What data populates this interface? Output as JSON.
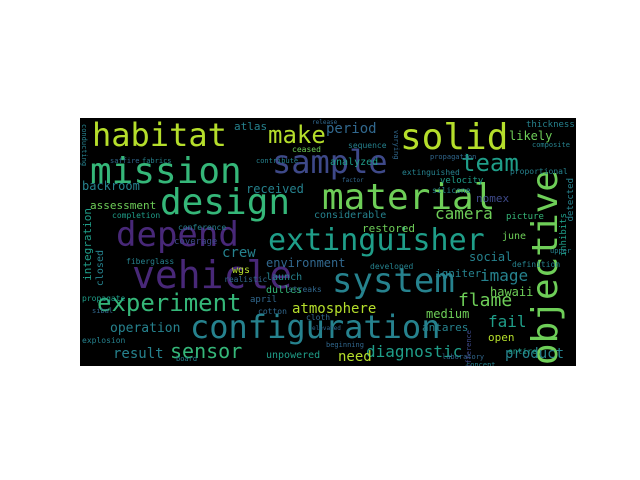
{
  "palette": {
    "background": "#000000",
    "yellow_green": "#b5de2b",
    "green": "#6ece58",
    "teal_green": "#35b779",
    "teal": "#1f9e89",
    "blue_teal": "#26828e",
    "blue": "#31688e",
    "indigo": "#3e4989",
    "purple": "#482878"
  },
  "words": [
    {
      "text": "habitat",
      "color": "#b5de2b"
    },
    {
      "text": "solid",
      "color": "#b5de2b"
    },
    {
      "text": "make",
      "color": "#b5de2b"
    },
    {
      "text": "mission",
      "color": "#35b779"
    },
    {
      "text": "sample",
      "color": "#3e4989"
    },
    {
      "text": "team",
      "color": "#1f9e89"
    },
    {
      "text": "design",
      "color": "#35b779"
    },
    {
      "text": "material",
      "color": "#6ece58"
    },
    {
      "text": "objective",
      "color": "#6ece58"
    },
    {
      "text": "depend",
      "color": "#482878"
    },
    {
      "text": "extinguisher",
      "color": "#1f9e89"
    },
    {
      "text": "vehicle",
      "color": "#482878"
    },
    {
      "text": "system",
      "color": "#26828e"
    },
    {
      "text": "experiment",
      "color": "#35b779"
    },
    {
      "text": "configuration",
      "color": "#26828e"
    },
    {
      "text": "flame",
      "color": "#6ece58"
    },
    {
      "text": "atmosphere",
      "color": "#b5de2b"
    },
    {
      "text": "sensor",
      "color": "#35b779"
    },
    {
      "text": "diagnostic",
      "color": "#1f9e89"
    },
    {
      "text": "product",
      "color": "#26828e"
    },
    {
      "text": "result",
      "color": "#26828e"
    },
    {
      "text": "operation",
      "color": "#26828e"
    },
    {
      "text": "camera",
      "color": "#6ece58"
    },
    {
      "text": "period",
      "color": "#31688e"
    },
    {
      "text": "image",
      "color": "#26828e"
    },
    {
      "text": "fail",
      "color": "#1f9e89"
    },
    {
      "text": "need",
      "color": "#b5de2b"
    },
    {
      "text": "unpowered",
      "color": "#1f9e89"
    },
    {
      "text": "environment",
      "color": "#31688e"
    },
    {
      "text": "crew",
      "color": "#26828e"
    },
    {
      "text": "atlas",
      "color": "#26828e"
    },
    {
      "text": "likely",
      "color": "#6ece58"
    },
    {
      "text": "social",
      "color": "#26828e"
    },
    {
      "text": "hawaii",
      "color": "#6ece58"
    },
    {
      "text": "medium",
      "color": "#6ece58"
    },
    {
      "text": "open",
      "color": "#b5de2b"
    },
    {
      "text": "antares",
      "color": "#26828e"
    },
    {
      "text": "restored",
      "color": "#6ece58"
    },
    {
      "text": "considerable",
      "color": "#26828e"
    },
    {
      "text": "received",
      "color": "#26828e"
    },
    {
      "text": "analyzed",
      "color": "#1f9e89"
    },
    {
      "text": "backroom",
      "color": "#26828e"
    },
    {
      "text": "assessment",
      "color": "#6ece58"
    },
    {
      "text": "integration",
      "color": "#1f9e89"
    },
    {
      "text": "closed",
      "color": "#26828e"
    },
    {
      "text": "igniter",
      "color": "#26828e"
    },
    {
      "text": "launch",
      "color": "#26828e"
    },
    {
      "text": "dulles",
      "color": "#35b779"
    },
    {
      "text": "wgs",
      "color": "#b5de2b"
    },
    {
      "text": "april",
      "color": "#31688e"
    },
    {
      "text": "june",
      "color": "#6ece58"
    },
    {
      "text": "picture",
      "color": "#35b779"
    },
    {
      "text": "detected",
      "color": "#26828e"
    },
    {
      "text": "inhibits",
      "color": "#1f9e89"
    },
    {
      "text": "nomex",
      "color": "#3e4989"
    },
    {
      "text": "thickness",
      "color": "#26828e"
    },
    {
      "text": "velocity",
      "color": "#1f9e89"
    },
    {
      "text": "cotton",
      "color": "#31688e"
    },
    {
      "text": "fiberglass",
      "color": "#26828e"
    },
    {
      "text": "streaks",
      "color": "#31688e"
    },
    {
      "text": "silicone",
      "color": "#26828e"
    },
    {
      "text": "conference",
      "color": "#26828e"
    },
    {
      "text": "completion",
      "color": "#1f9e89"
    },
    {
      "text": "ceased",
      "color": "#6ece58"
    },
    {
      "text": "developed",
      "color": "#26828e"
    },
    {
      "text": "propagate",
      "color": "#1f9e89"
    },
    {
      "text": "proportional",
      "color": "#26828e"
    },
    {
      "text": "definition",
      "color": "#26828e"
    },
    {
      "text": "laboratory",
      "color": "#31688e"
    },
    {
      "text": "explosion",
      "color": "#26828e"
    },
    {
      "text": "realistic",
      "color": "#31688e"
    },
    {
      "text": "coverage",
      "color": "#3e4989"
    },
    {
      "text": "sequence",
      "color": "#26828e"
    },
    {
      "text": "extinguished",
      "color": "#26828e"
    },
    {
      "text": "entire",
      "color": "#1f9e89"
    },
    {
      "text": "cloth",
      "color": "#31688e"
    },
    {
      "text": "composite",
      "color": "#26828e"
    },
    {
      "text": "propagation",
      "color": "#31688e"
    },
    {
      "text": "concept",
      "color": "#26828e"
    },
    {
      "text": "saffire",
      "color": "#31688e"
    },
    {
      "text": "fabrics",
      "color": "#26828e"
    },
    {
      "text": "contribute",
      "color": "#26828e"
    },
    {
      "text": "beginning",
      "color": "#31688e"
    },
    {
      "text": "board",
      "color": "#26828e"
    },
    {
      "text": "varying",
      "color": "#31688e"
    },
    {
      "text": "upper",
      "color": "#26828e"
    },
    {
      "text": "sibal",
      "color": "#31688e"
    },
    {
      "text": "difference",
      "color": "#3e4989"
    },
    {
      "text": "elevated",
      "color": "#31688e"
    },
    {
      "text": "factor",
      "color": "#31688e"
    },
    {
      "text": "conducting",
      "color": "#26828e"
    },
    {
      "text": "release",
      "color": "#31688e"
    }
  ]
}
